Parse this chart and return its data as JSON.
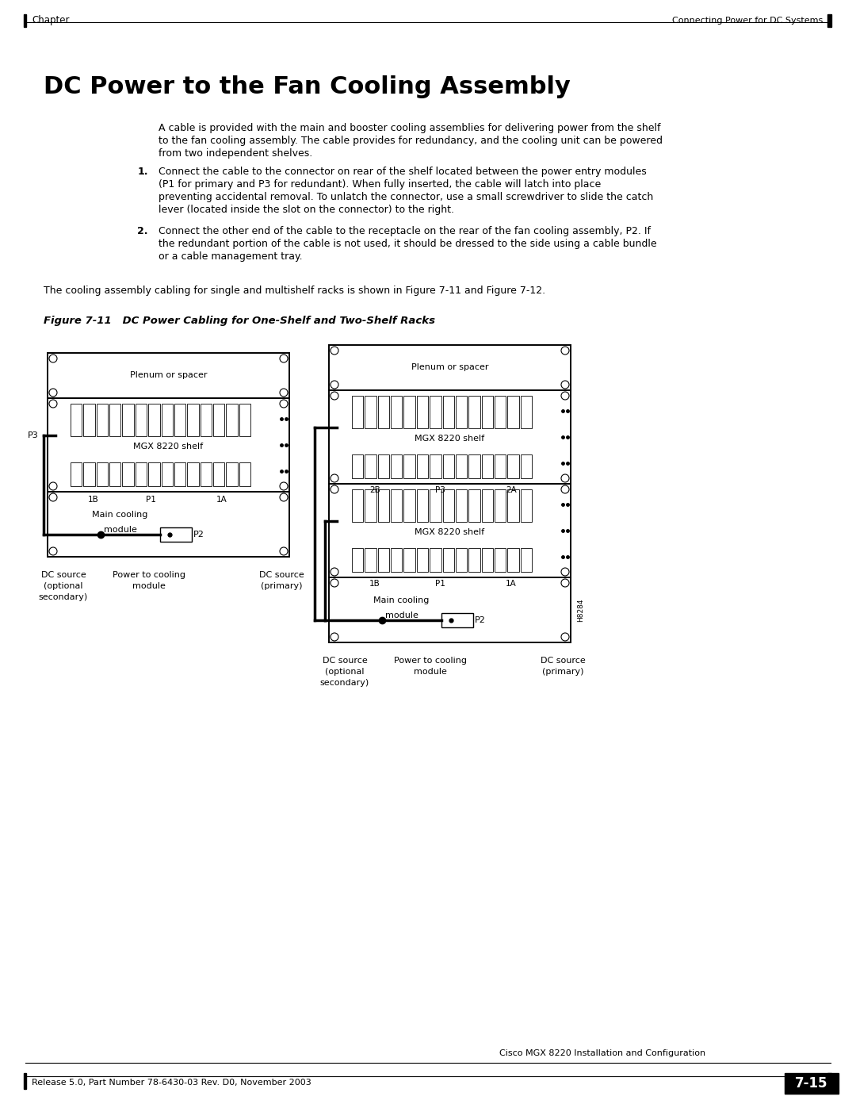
{
  "page_title": "DC Power to the Fan Cooling Assembly",
  "header_left": "Chapter",
  "header_right": "Connecting Power for DC Systems",
  "footer_left": "Release 5.0, Part Number 78-6430-03 Rev. D0, November 2003",
  "footer_right": "7-15",
  "footer_center": "Cisco MGX 8220 Installation and Configuration",
  "body_text_1": "A cable is provided with the main and booster cooling assemblies for delivering power from the shelf\nto the fan cooling assembly. The cable provides for redundancy, and the cooling unit can be powered\nfrom two independent shelves.",
  "numbered_1": "Connect the cable to the connector on rear of the shelf located between the power entry modules\n(P1 for primary and P3 for redundant). When fully inserted, the cable will latch into place\npreventing accidental removal. To unlatch the connector, use a small screwdriver to slide the catch\nlever (located inside the slot on the connector) to the right.",
  "numbered_2": "Connect the other end of the cable to the receptacle on the rear of the fan cooling assembly, P2. If\nthe redundant portion of the cable is not used, it should be dressed to the side using a cable bundle\nor a cable management tray.",
  "summary_text": "The cooling assembly cabling for single and multishelf racks is shown in Figure 7-11 and Figure 7-12.",
  "figure_caption": "Figure 7-11   DC Power Cabling for One-Shelf and Two-Shelf Racks",
  "bg_color": "#ffffff",
  "text_color": "#000000",
  "border_color": "#000000"
}
